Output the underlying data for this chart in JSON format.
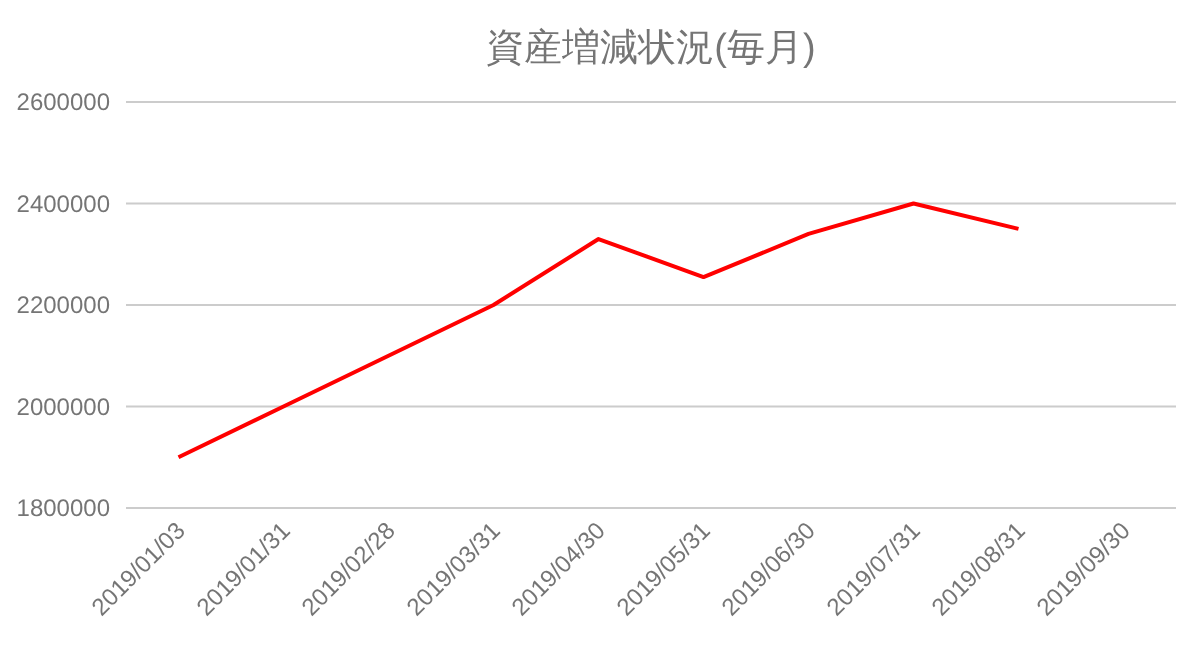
{
  "chart_data": {
    "type": "line",
    "title": "資産増減状況(毎月)",
    "categories": [
      "2019/01/03",
      "2019/01/31",
      "2019/02/28",
      "2019/03/31",
      "2019/04/30",
      "2019/05/31",
      "2019/06/30",
      "2019/07/31",
      "2019/08/31",
      "2019/09/30"
    ],
    "series": [
      {
        "color": "#ff0000",
        "values": [
          1900000,
          2000000,
          2100000,
          2200000,
          2330000,
          2255000,
          2340000,
          2400000,
          2350000,
          null
        ]
      }
    ],
    "ylim": [
      1800000,
      2600000
    ],
    "yticks": [
      1800000,
      2000000,
      2200000,
      2400000,
      2600000
    ],
    "grid": "y",
    "marker": "none",
    "line_style": "solid"
  }
}
